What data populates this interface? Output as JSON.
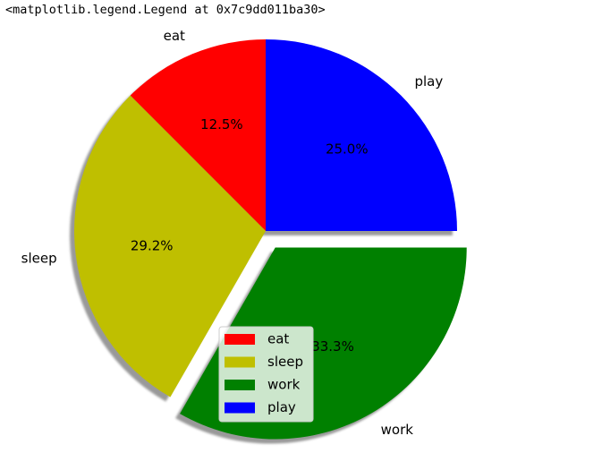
{
  "output_text": "<matplotlib.legend.Legend at 0x7c9dd011ba30>",
  "chart_data": {
    "type": "pie",
    "categories": [
      "eat",
      "sleep",
      "work",
      "play"
    ],
    "values": [
      12.5,
      29.2,
      33.3,
      25.0
    ],
    "percent_labels": [
      "12.5%",
      "29.2%",
      "33.3%",
      "25.0%"
    ],
    "colors": [
      "#ff0000",
      "#bfbf00",
      "#008000",
      "#0000ff"
    ],
    "start_angle_deg": 90,
    "direction": "counterclockwise",
    "explode": [
      0,
      0,
      0.1,
      0
    ],
    "shadow": true,
    "legend": {
      "placement": "lower-center-overlap",
      "entries": [
        "eat",
        "sleep",
        "work",
        "play"
      ]
    }
  }
}
